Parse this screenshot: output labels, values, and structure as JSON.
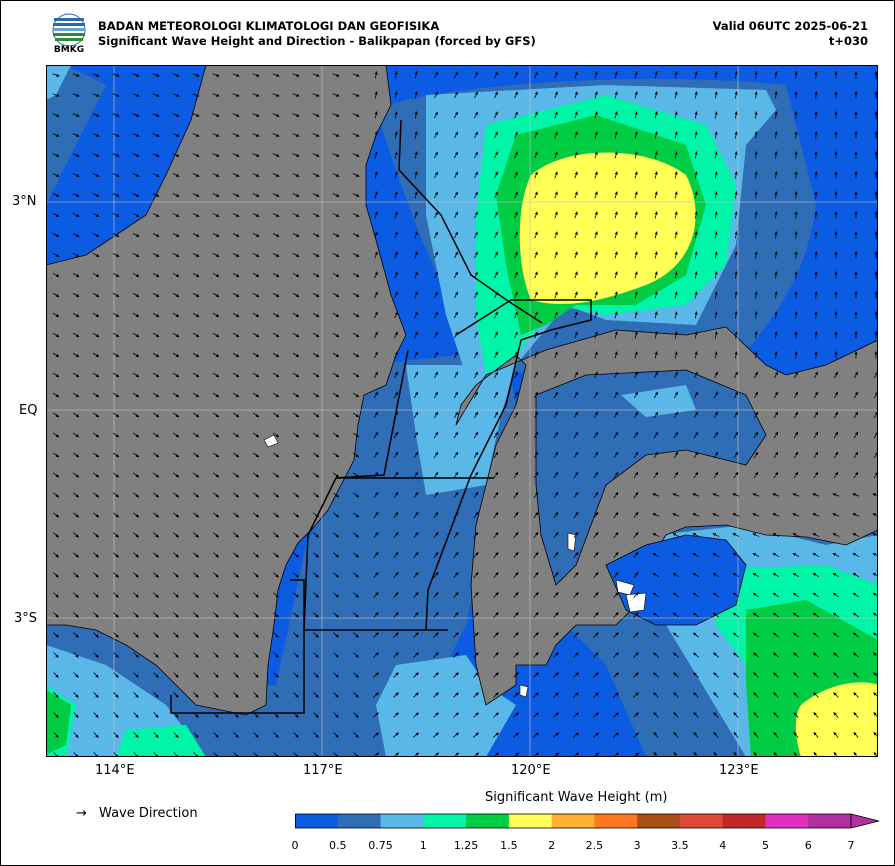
{
  "header": {
    "org_name": "BADAN METEOROLOGI KLIMATOLOGI DAN GEOFISIKA",
    "product_title": "Significant Wave Height and Direction - Balikpapan (forced by GFS)",
    "valid_time": "Valid 06UTC 2025-06-21",
    "forecast_step": "t+030"
  },
  "logo": {
    "text": "BMKG"
  },
  "axes": {
    "lon_ticks": [
      "114°E",
      "117°E",
      "120°E",
      "123°E"
    ],
    "lat_ticks": [
      "3°N",
      "EQ",
      "3°S"
    ]
  },
  "legend": {
    "direction_symbol": "→",
    "direction_label": "Wave Direction"
  },
  "colorbar": {
    "title": "Significant Wave Height (m)",
    "labels": [
      "0",
      "0.5",
      "0.75",
      "1",
      "1.25",
      "1.5",
      "2",
      "2.5",
      "3",
      "3.5",
      "4",
      "5",
      "6",
      "7"
    ],
    "colors": [
      "#0b5be3",
      "#2f6db6",
      "#5ab8e8",
      "#00f5a8",
      "#00cc44",
      "#ffff55",
      "#ffb030",
      "#ff7820",
      "#a85015",
      "#e04838",
      "#c02828",
      "#e030c0",
      "#b030a0"
    ]
  },
  "colors": {
    "land": "#808080",
    "wave_lt_0_5": "#0b5be3",
    "wave_0_5_0_75": "#2f6db6",
    "wave_0_75_1": "#5ab8e8",
    "wave_1_1_25": "#00f5a8",
    "wave_1_25_1_5": "#00cc44",
    "wave_1_5_2": "#ffff55"
  }
}
